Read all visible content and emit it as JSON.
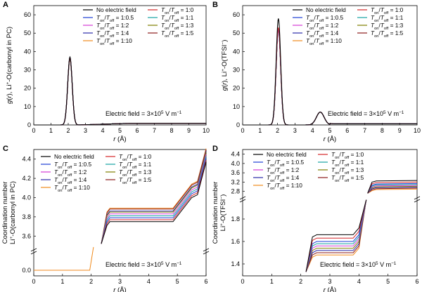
{
  "chart_data": [
    {
      "panel": "A",
      "type": "line",
      "ylabel": "g(r), Li+-O(carbonyl in PC)",
      "xlabel": "r (Å)",
      "xlim": [
        0,
        10
      ],
      "ylim": [
        0,
        65
      ],
      "xticks": [
        "0",
        "1",
        "2",
        "3",
        "4",
        "5",
        "6",
        "7",
        "8",
        "9",
        "10"
      ],
      "yticks": [
        "0",
        "10",
        "20",
        "30",
        "40",
        "50",
        "60"
      ],
      "annotation": "Electric field = 3×10^5 V m^-1",
      "series": [
        {
          "name": "No electric field",
          "peak": 37,
          "color": "#000000"
        },
        {
          "name": "Ton/Toff = 1:0",
          "peak": 36.5,
          "color": "#d62728"
        },
        {
          "name": "Ton/Toff = 1:0.5",
          "peak": 36.7,
          "color": "#1f3fd6"
        },
        {
          "name": "Ton/Toff = 1:1",
          "peak": 36.4,
          "color": "#17a3a3"
        },
        {
          "name": "Ton/Toff = 1:2",
          "peak": 36.6,
          "color": "#d63bd6"
        },
        {
          "name": "Ton/Toff = 1:3",
          "peak": 36.2,
          "color": "#7f7f00"
        },
        {
          "name": "Ton/Toff = 1:4",
          "peak": 36.3,
          "color": "#2a2aa8"
        },
        {
          "name": "Ton/Toff = 1:5",
          "peak": 36.1,
          "color": "#8b1a1a"
        },
        {
          "name": "Ton/Toff = 1:10",
          "peak": 36.0,
          "color": "#f08a1c"
        }
      ]
    },
    {
      "panel": "B",
      "type": "line",
      "ylabel": "g(r), Li+-O(TFSI-)",
      "xlabel": "r (Å)",
      "xlim": [
        0,
        10
      ],
      "ylim": [
        0,
        65
      ],
      "xticks": [
        "0",
        "1",
        "2",
        "3",
        "4",
        "5",
        "6",
        "7",
        "8",
        "9",
        "10"
      ],
      "yticks": [
        "0",
        "10",
        "20",
        "30",
        "40",
        "50",
        "60"
      ],
      "annotation": "Electric field = 3×10^5 V m^-1",
      "series": [
        {
          "name": "No electric field",
          "peak": 58,
          "color": "#000000"
        },
        {
          "name": "Ton/Toff = 1:0",
          "peak": 53,
          "color": "#d62728"
        },
        {
          "name": "Ton/Toff = 1:0.5",
          "peak": 52,
          "color": "#1f3fd6"
        },
        {
          "name": "Ton/Toff = 1:1",
          "peak": 52.5,
          "color": "#17a3a3"
        },
        {
          "name": "Ton/Toff = 1:2",
          "peak": 52,
          "color": "#d63bd6"
        },
        {
          "name": "Ton/Toff = 1:3",
          "peak": 52.5,
          "color": "#7f7f00"
        },
        {
          "name": "Ton/Toff = 1:4",
          "peak": 52,
          "color": "#2a2aa8"
        },
        {
          "name": "Ton/Toff = 1:5",
          "peak": 52.2,
          "color": "#8b1a1a"
        },
        {
          "name": "Ton/Toff = 1:10",
          "peak": 51.5,
          "color": "#f08a1c"
        }
      ]
    },
    {
      "panel": "C",
      "type": "line",
      "ylabel_line1": "Coordination number",
      "ylabel_line2": "Li+-O(carbonyl in PC)",
      "xlabel": "r (Å)",
      "xlim": [
        0,
        6
      ],
      "yticks": [
        "0.0",
        "3.6",
        "3.8",
        "4.0",
        "4.2",
        "4.4"
      ],
      "xticks": [
        "0",
        "1",
        "2",
        "3",
        "4",
        "5",
        "6"
      ],
      "axis_break": true,
      "annotation": "Electric field = 3×10^5 V m^-1",
      "plateau_values": [
        3.75,
        3.77,
        3.79,
        3.81,
        3.83,
        3.85,
        3.86,
        3.88,
        3.89
      ]
    },
    {
      "panel": "D",
      "type": "line",
      "ylabel_line1": "Coordination number",
      "ylabel_line2": "Li+-O(TFSI-)",
      "xlabel": "r (Å)",
      "xlim": [
        0,
        6
      ],
      "yticks": [
        "1.4",
        "1.6",
        "1.8",
        "2.8",
        "3.2",
        "3.6",
        "4.0",
        "4.4"
      ],
      "xticks": [
        "0",
        "1",
        "2",
        "3",
        "4",
        "5",
        "6"
      ],
      "axis_break": true,
      "annotation": "Electric field = 3×10^5 V m^-1",
      "plateau1_values": [
        1.66,
        1.63,
        1.6,
        1.58,
        1.56,
        1.54,
        1.52,
        1.5,
        1.48
      ],
      "plateau2_values": [
        3.25,
        3.18,
        3.12,
        3.08,
        3.04,
        3.0,
        2.96,
        2.92,
        2.88
      ]
    }
  ],
  "legend": {
    "left_col": [
      "No electric field",
      "1:0.5",
      "1:2",
      "1:4",
      "1:10"
    ],
    "right_col": [
      "1:0",
      "1:1",
      "1:3",
      "1:5"
    ],
    "left_colors": [
      "#000000",
      "#1f3fd6",
      "#d63bd6",
      "#2a2aa8",
      "#f08a1c"
    ],
    "right_colors": [
      "#d62728",
      "#17a3a3",
      "#7f7f00",
      "#8b1a1a"
    ],
    "ratio_prefix": "Ton/Toff = "
  }
}
